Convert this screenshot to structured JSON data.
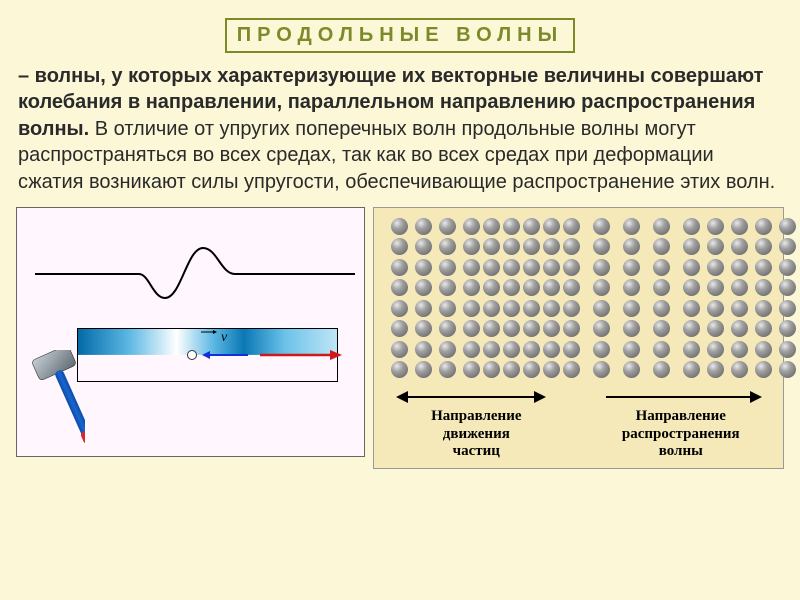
{
  "slide": {
    "background": "#fbf7d7",
    "title_frame_color": "#7d8a2a",
    "title_text_color": "#7d8a2a",
    "title": "ПРОДОЛЬНЫЕ   ВОЛНЫ",
    "definition": "– волны, у которых характеризующие их векторные величины совершают колебания в направлении, параллельном направлению распространения волны.",
    "explanation": "В отличие от упругих поперечных волн продольные волны могут распространяться во всех средах, так как во всех средах при деформации сжатия возникают силы упругости, обеспечивающие распространение этих волн.",
    "text_color": "#2a2a2a",
    "fontsize_title": 20,
    "fontsize_body": 20
  },
  "fig_left": {
    "background": "#fff6fe",
    "waveform_color": "#000000",
    "rod": {
      "grad_stops": [
        "#036aa8",
        "#5eb9e4",
        "#ffffff",
        "#5eb9e4",
        "#0a78b5",
        "#6cc2ea",
        "#bfe6f6"
      ],
      "border_color": "#000000",
      "v_label": "v",
      "v_label_color": "#000000",
      "arrow_left_color": "#1030d8",
      "arrow_right_color": "#d01818",
      "circle_fill": "#ffffff",
      "circle_border": "#333333"
    },
    "hammer": {
      "head_color_dark": "#5f6a73",
      "head_color_light": "#c7ced4",
      "handle_color": "#1866d2",
      "handle_tip": "#d02a2a"
    }
  },
  "fig_right": {
    "background": "#f6e9b9",
    "particle_fill": "#808080",
    "particle_diameter": 17,
    "rows": 8,
    "column_gaps": [
      7,
      7,
      7,
      7,
      3,
      3,
      3,
      3,
      3,
      13,
      13,
      13,
      13,
      7,
      7,
      7,
      7
    ],
    "arrow_color": "#000000",
    "captions": {
      "left": "Направление\nдвижения\nчастиц",
      "right": "Направление\nрaспространения\nволны",
      "color": "#000000",
      "font": "Times New Roman",
      "fontsize": 15,
      "weight": "bold"
    }
  }
}
